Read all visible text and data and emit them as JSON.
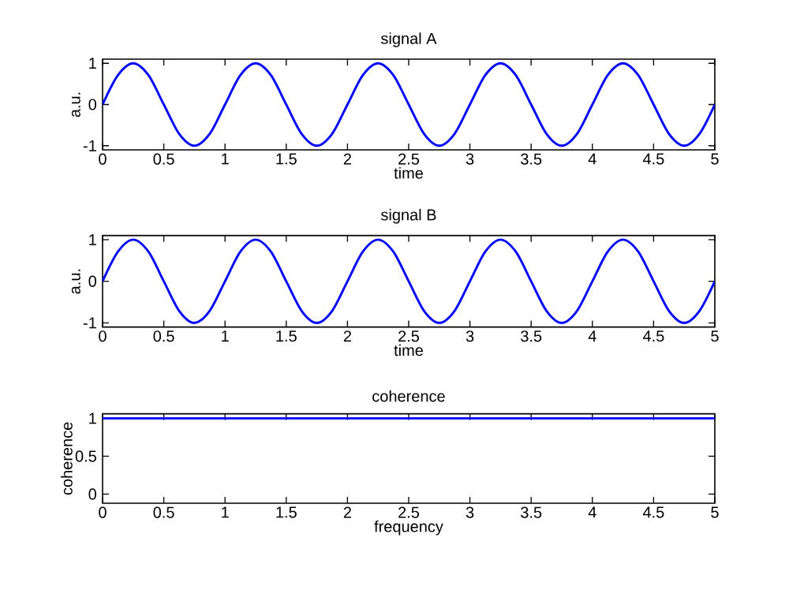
{
  "chart_data": [
    {
      "type": "line",
      "title": "signal A",
      "xlabel": "time",
      "ylabel": "a.u.",
      "x": [
        0,
        0.125,
        0.25,
        0.375,
        0.5,
        0.625,
        0.75,
        0.875,
        1,
        1.125,
        1.25,
        1.375,
        1.5,
        1.625,
        1.75,
        1.875,
        2,
        2.125,
        2.25,
        2.375,
        2.5,
        2.625,
        2.75,
        2.875,
        3,
        3.125,
        3.25,
        3.375,
        3.5,
        3.625,
        3.75,
        3.875,
        4,
        4.125,
        4.25,
        4.375,
        4.5,
        4.625,
        4.75,
        4.875,
        5
      ],
      "series": [
        {
          "color": "#0000ff",
          "values": [
            0,
            0.71,
            1,
            0.71,
            0,
            -0.71,
            -1,
            -0.71,
            0,
            0.71,
            1,
            0.71,
            0,
            -0.71,
            -1,
            -0.71,
            0,
            0.71,
            1,
            0.71,
            0,
            -0.71,
            -1,
            -0.71,
            0,
            0.71,
            1,
            0.71,
            0,
            -0.71,
            -1,
            -0.71,
            0,
            0.71,
            1,
            0.71,
            0,
            -0.71,
            -1,
            -0.71,
            0
          ]
        }
      ],
      "xlim": [
        0,
        5
      ],
      "ylim": [
        -1.1,
        1.1
      ],
      "xticks": [
        0,
        0.5,
        1,
        1.5,
        2,
        2.5,
        3,
        3.5,
        4,
        4.5,
        5
      ],
      "yticks": [
        -1,
        0,
        1
      ]
    },
    {
      "type": "line",
      "title": "signal B",
      "xlabel": "time",
      "ylabel": "a.u.",
      "x": [
        0,
        0.125,
        0.25,
        0.375,
        0.5,
        0.625,
        0.75,
        0.875,
        1,
        1.125,
        1.25,
        1.375,
        1.5,
        1.625,
        1.75,
        1.875,
        2,
        2.125,
        2.25,
        2.375,
        2.5,
        2.625,
        2.75,
        2.875,
        3,
        3.125,
        3.25,
        3.375,
        3.5,
        3.625,
        3.75,
        3.875,
        4,
        4.125,
        4.25,
        4.375,
        4.5,
        4.625,
        4.75,
        4.875,
        5
      ],
      "series": [
        {
          "color": "#0000ff",
          "values": [
            0,
            0.71,
            1,
            0.71,
            0,
            -0.71,
            -1,
            -0.71,
            0,
            0.71,
            1,
            0.71,
            0,
            -0.71,
            -1,
            -0.71,
            0,
            0.71,
            1,
            0.71,
            0,
            -0.71,
            -1,
            -0.71,
            0,
            0.71,
            1,
            0.71,
            0,
            -0.71,
            -1,
            -0.71,
            0,
            0.71,
            1,
            0.71,
            0,
            -0.71,
            -1,
            -0.71,
            0
          ]
        }
      ],
      "xlim": [
        0,
        5
      ],
      "ylim": [
        -1.1,
        1.1
      ],
      "xticks": [
        0,
        0.5,
        1,
        1.5,
        2,
        2.5,
        3,
        3.5,
        4,
        4.5,
        5
      ],
      "yticks": [
        -1,
        0,
        1
      ]
    },
    {
      "type": "line",
      "title": "coherence",
      "xlabel": "frequency",
      "ylabel": "coherence",
      "x": [
        0,
        5
      ],
      "series": [
        {
          "color": "#0000ff",
          "values": [
            1,
            1
          ]
        }
      ],
      "xlim": [
        0,
        5
      ],
      "ylim": [
        -0.12,
        1.06
      ],
      "xticks": [
        0,
        0.5,
        1,
        1.5,
        2,
        2.5,
        3,
        3.5,
        4,
        4.5,
        5
      ],
      "yticks": [
        0,
        0.5,
        1
      ]
    }
  ]
}
